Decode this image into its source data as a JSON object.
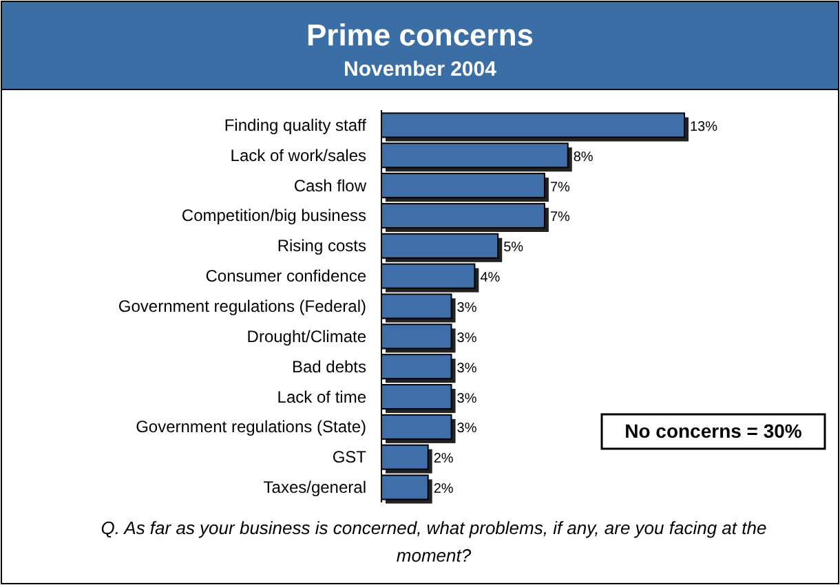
{
  "chart_data": {
    "type": "bar",
    "orientation": "horizontal",
    "title": "Prime concerns",
    "subtitle": "November 2004",
    "categories": [
      "Finding quality staff",
      "Lack of work/sales",
      "Cash flow",
      "Competition/big business",
      "Rising costs",
      "Consumer confidence",
      "Government regulations (Federal)",
      "Drought/Climate",
      "Bad debts",
      "Lack of time",
      "Government regulations (State)",
      "GST",
      "Taxes/general"
    ],
    "values": [
      13,
      8,
      7,
      7,
      5,
      4,
      3,
      3,
      3,
      3,
      3,
      2,
      2
    ],
    "value_labels": [
      "13%",
      "8%",
      "7%",
      "7%",
      "5%",
      "4%",
      "3%",
      "3%",
      "3%",
      "3%",
      "3%",
      "2%",
      "2%"
    ],
    "color": "#3f6ea8",
    "annotations": [
      "No concerns = 30%",
      "Q. As far as your business is concerned, what problems, if any, are you facing at the moment?"
    ]
  }
}
